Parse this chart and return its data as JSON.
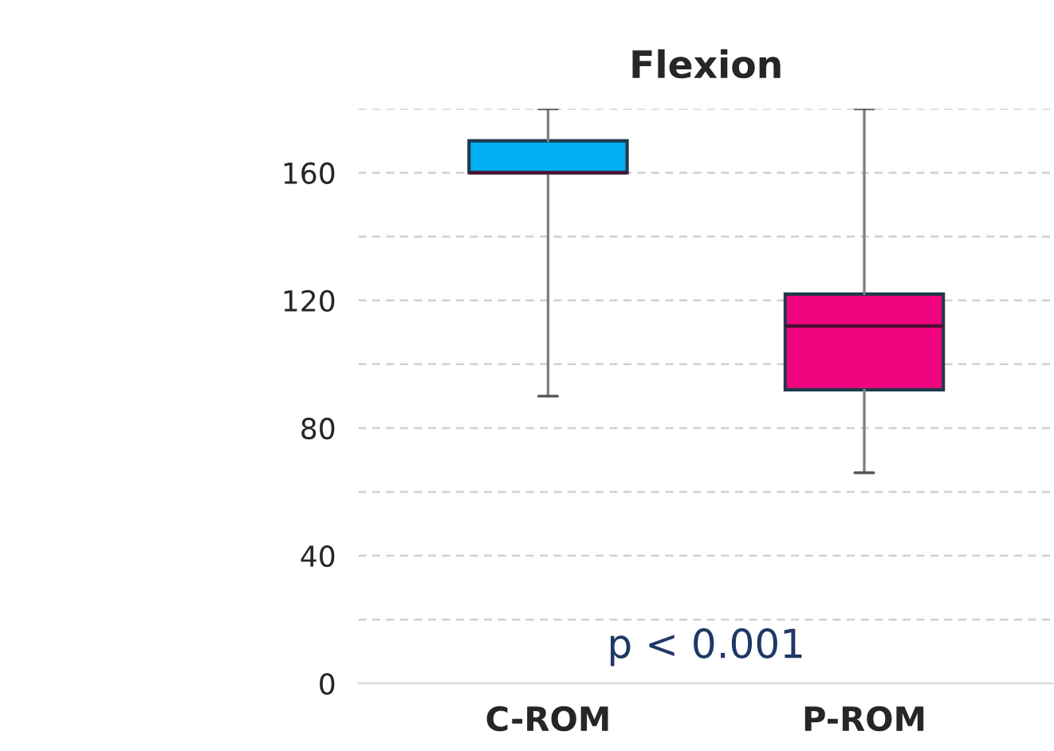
{
  "chart_data": {
    "type": "box",
    "title": "Flexion",
    "categories": [
      "C-ROM",
      "P-ROM"
    ],
    "boxes": [
      {
        "low": 90,
        "q1": 160,
        "median": 160,
        "q3": 170,
        "high": 180
      },
      {
        "low": 66,
        "q1": 92,
        "median": 112,
        "q3": 122,
        "high": 180
      }
    ],
    "colors": [
      "#00b0f0",
      "#f0047f"
    ],
    "ylim": [
      0,
      180
    ],
    "yticks": [
      0,
      {
        "value": 20,
        "label": null
      },
      40,
      {
        "value": 60,
        "label": null
      },
      80,
      {
        "value": 100,
        "label": null
      },
      120,
      {
        "value": 140,
        "label": null
      },
      160,
      {
        "value": 180,
        "label": null
      }
    ],
    "grid": "y",
    "annotations": [
      "p < 0.001"
    ]
  }
}
